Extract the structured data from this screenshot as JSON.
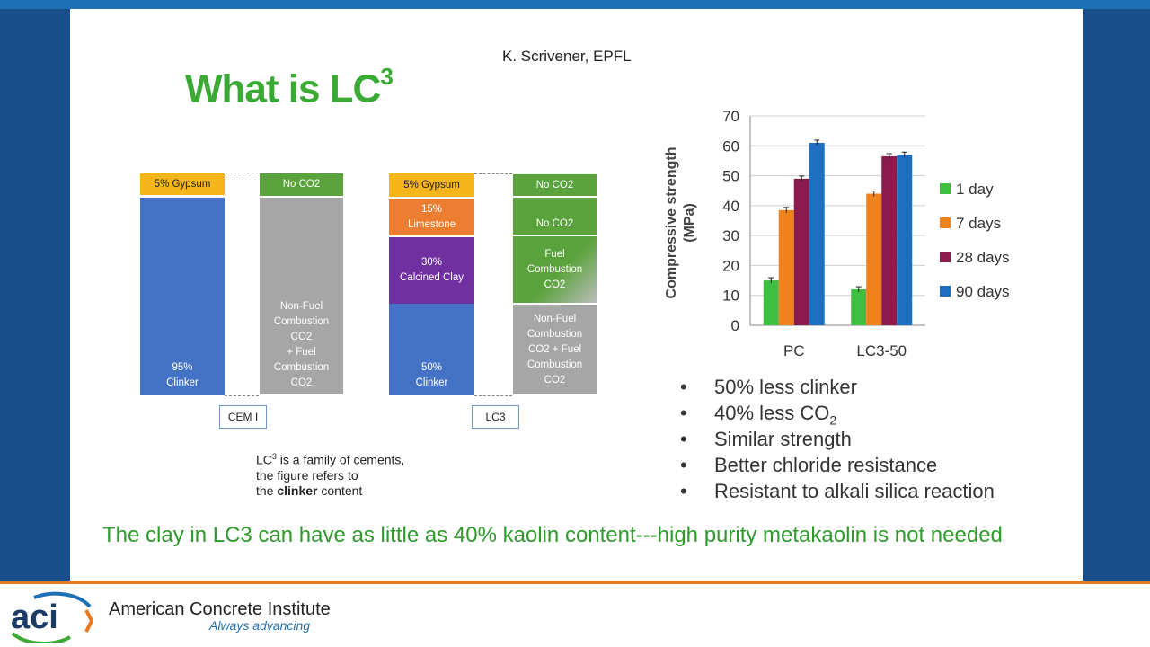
{
  "header": {
    "author": "K. Scrivener, EPFL",
    "title_main": "What is LC",
    "title_sup": "3"
  },
  "cement_diagram": {
    "cem_left": {
      "gypsum": "5% Gypsum",
      "clinker": [
        "95%",
        "Clinker"
      ],
      "label": "CEM I"
    },
    "cem_right": {
      "no_co2": "No CO2",
      "combustion": [
        "Non-Fuel",
        "Combustion",
        "CO2",
        "+ Fuel",
        "Combustion",
        "CO2"
      ]
    },
    "lc3_left": {
      "gypsum": "5% Gypsum",
      "limestone": [
        "15%",
        "Limestone"
      ],
      "clay": [
        "30%",
        "Calcined Clay"
      ],
      "clinker": [
        "50%",
        "Clinker"
      ],
      "label": "LC3"
    },
    "lc3_right": {
      "no_co2_a": "No CO2",
      "no_co2_b": "No CO2",
      "fuel": [
        "Fuel",
        "Combustion",
        "CO2"
      ],
      "combustion": [
        "Non-Fuel",
        "Combustion",
        "CO2 + Fuel",
        "Combustion",
        "CO2"
      ]
    },
    "note": {
      "line1_pre": "LC",
      "line1_sup": "3",
      "line1_post": " is a family of cements,",
      "line2": "the figure refers to",
      "line3_pre": "the ",
      "line3_bold": "clinker",
      "line3_post": " content"
    }
  },
  "chart_data": {
    "type": "bar",
    "categories": [
      "PC",
      "LC3-50"
    ],
    "series": [
      {
        "name": "1 day",
        "values": [
          15,
          12
        ],
        "color": "#3fbf3f"
      },
      {
        "name": "7 days",
        "values": [
          38.5,
          44
        ],
        "color": "#f0821e"
      },
      {
        "name": "28 days",
        "values": [
          49,
          56.5
        ],
        "color": "#8b1a4d"
      },
      {
        "name": "90 days",
        "values": [
          61,
          57
        ],
        "color": "#1f6fc0"
      }
    ],
    "ylabel": "Compressive strength (MPa)",
    "ylabel_line1": "Compressive strength",
    "ylabel_line2": "(MPa)",
    "ylim": [
      0,
      70
    ],
    "yticks": [
      0,
      10,
      20,
      30,
      40,
      50,
      60,
      70
    ],
    "grid": true,
    "legend_position": "right"
  },
  "bullets": [
    "50% less clinker",
    "40% less CO",
    "Similar strength",
    "Better chloride resistance",
    "Resistant to alkali silica reaction"
  ],
  "bullet_co2_sub": "2",
  "bottom_text": "The clay in LC3 can have as little as 40% kaolin content---high purity metakaolin is not needed",
  "footer": {
    "logo_text": "aci",
    "org_name": "American Concrete Institute",
    "tagline": "Always advancing"
  },
  "colors": {
    "accent_blue": "#1a4d8c",
    "accent_orange": "#e8791e",
    "title_green": "#3aaa35"
  }
}
